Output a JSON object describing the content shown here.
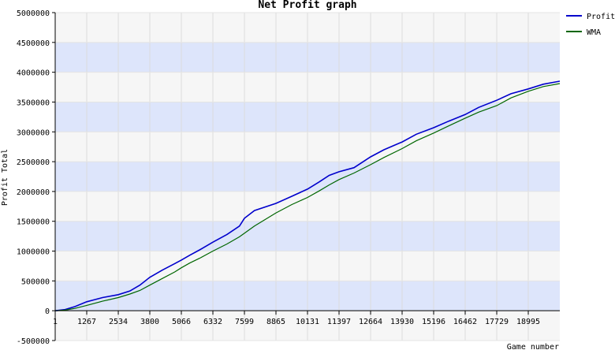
{
  "chart_data": {
    "type": "line",
    "title": "Net Profit graph",
    "xlabel": "Game number",
    "ylabel": "Profit Total",
    "xlim": [
      1,
      20261
    ],
    "ylim": [
      -500000,
      5000000
    ],
    "x_ticks": [
      1,
      1267,
      2534,
      3800,
      5066,
      6332,
      7599,
      8865,
      10131,
      11397,
      12664,
      13930,
      15196,
      16462,
      17729,
      18995
    ],
    "x_tick_labels": [
      "1",
      "1267",
      "2534",
      "3800",
      "5066",
      "6332",
      "7599",
      "8865",
      "10131",
      "11397",
      "12664",
      "13930",
      "15196",
      "16462",
      "17729",
      "18995"
    ],
    "y_ticks": [
      -500000,
      0,
      500000,
      1000000,
      1500000,
      2000000,
      2500000,
      3000000,
      3500000,
      4000000,
      4500000,
      5000000
    ],
    "y_tick_labels": [
      "-500000",
      "0",
      "500000",
      "1000000",
      "1500000",
      "2000000",
      "2500000",
      "3000000",
      "3500000",
      "4000000",
      "4500000",
      "5000000"
    ],
    "grid": true,
    "background_bands": [
      "#f6f6f6",
      "#dde5fb"
    ],
    "legend_position": "top-right",
    "series": [
      {
        "name": "Profit",
        "color": "#0000cc",
        "x": [
          1,
          400,
          800,
          1267,
          1900,
          2534,
          3000,
          3400,
          3800,
          4300,
          4800,
          5066,
          5400,
          5800,
          6332,
          6900,
          7400,
          7599,
          8000,
          8865,
          9500,
          10131,
          10600,
          11000,
          11397,
          12000,
          12664,
          13200,
          13930,
          14500,
          15196,
          15800,
          16462,
          17000,
          17729,
          18300,
          18995,
          19600,
          20261
        ],
        "values": [
          0,
          20000,
          70000,
          150000,
          220000,
          270000,
          330000,
          430000,
          560000,
          680000,
          790000,
          850000,
          930000,
          1020000,
          1150000,
          1280000,
          1420000,
          1550000,
          1680000,
          1800000,
          1920000,
          2040000,
          2160000,
          2270000,
          2330000,
          2400000,
          2580000,
          2700000,
          2830000,
          2960000,
          3070000,
          3180000,
          3290000,
          3410000,
          3530000,
          3640000,
          3720000,
          3800000,
          3850000
        ]
      },
      {
        "name": "WMA",
        "color": "#006600",
        "x": [
          1,
          400,
          800,
          1267,
          1900,
          2534,
          3000,
          3400,
          3800,
          4300,
          4800,
          5066,
          5400,
          5800,
          6332,
          6900,
          7400,
          7599,
          8000,
          8865,
          9500,
          10131,
          10600,
          11000,
          11397,
          12000,
          12664,
          13200,
          13930,
          14500,
          15196,
          15800,
          16462,
          17000,
          17729,
          18300,
          18995,
          19600,
          20261
        ],
        "values": [
          0,
          10000,
          40000,
          90000,
          160000,
          220000,
          280000,
          340000,
          430000,
          540000,
          650000,
          720000,
          800000,
          880000,
          1000000,
          1120000,
          1240000,
          1300000,
          1420000,
          1640000,
          1780000,
          1900000,
          2010000,
          2110000,
          2200000,
          2310000,
          2450000,
          2570000,
          2720000,
          2850000,
          2980000,
          3100000,
          3230000,
          3330000,
          3440000,
          3570000,
          3680000,
          3760000,
          3810000
        ]
      }
    ]
  }
}
